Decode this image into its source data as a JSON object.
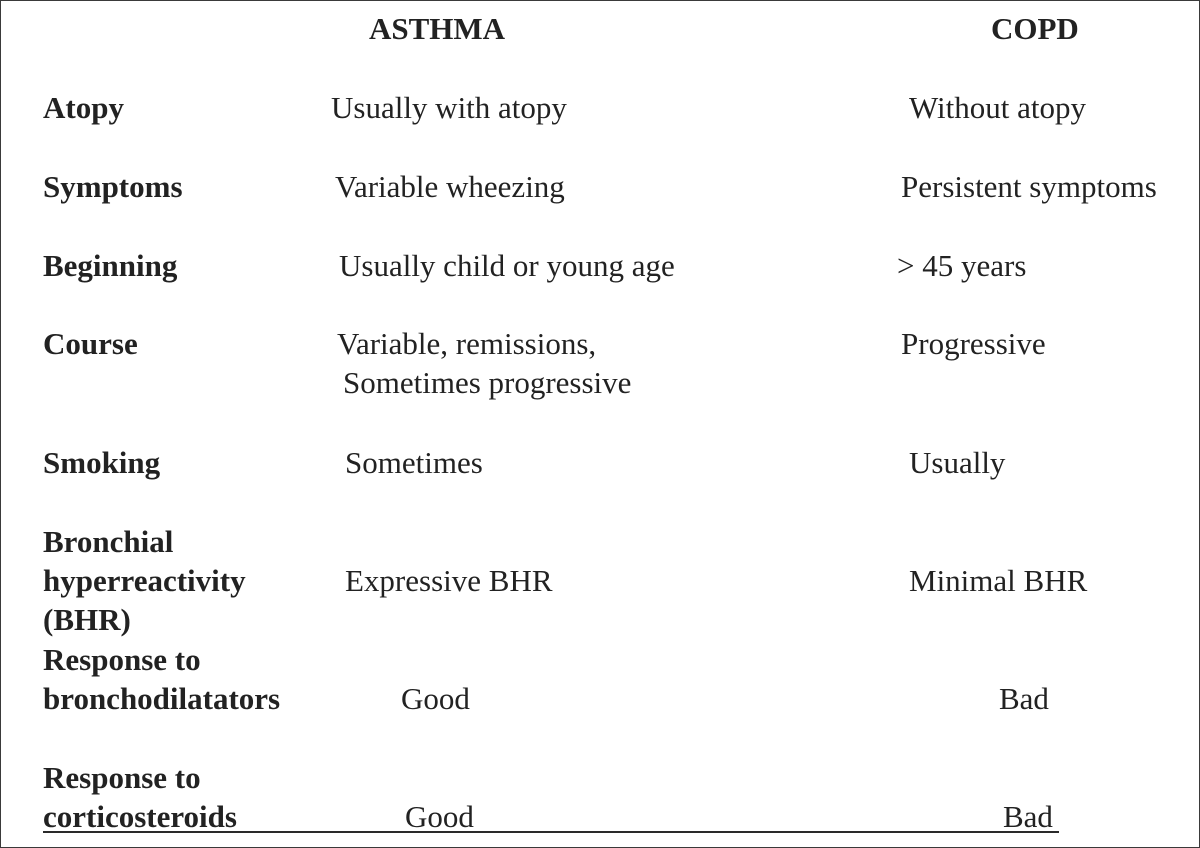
{
  "header": {
    "asthma": "ASTHMA",
    "copd": "COPD"
  },
  "rows": [
    {
      "label": [
        "Atopy"
      ],
      "asthma": [
        "Usually with atopy"
      ],
      "copd": [
        "Without atopy"
      ]
    },
    {
      "label": [
        "Symptoms"
      ],
      "asthma": [
        "Variable wheezing"
      ],
      "copd": [
        "Persistent symptoms"
      ]
    },
    {
      "label": [
        "Beginning"
      ],
      "asthma": [
        "Usually child or young age"
      ],
      "copd": [
        "> 45 years"
      ]
    },
    {
      "label": [
        "Course"
      ],
      "asthma": [
        "Variable, remissions,",
        "Sometimes progressive"
      ],
      "copd": [
        "Progressive"
      ]
    },
    {
      "label": [
        "Smoking"
      ],
      "asthma": [
        "Sometimes"
      ],
      "copd": [
        "Usually"
      ]
    },
    {
      "label": [
        "Bronchial",
        "hyperreactivity",
        "(BHR)"
      ],
      "asthma": [
        "Expressive BHR"
      ],
      "copd": [
        "Minimal BHR"
      ]
    },
    {
      "label": [
        "Response to",
        "bronchodilatators"
      ],
      "asthma": [
        "Good"
      ],
      "copd": [
        "Bad"
      ]
    },
    {
      "label": [
        "Response to",
        "corticosteroids"
      ],
      "asthma": [
        "Good"
      ],
      "copd": [
        "Bad"
      ]
    }
  ]
}
